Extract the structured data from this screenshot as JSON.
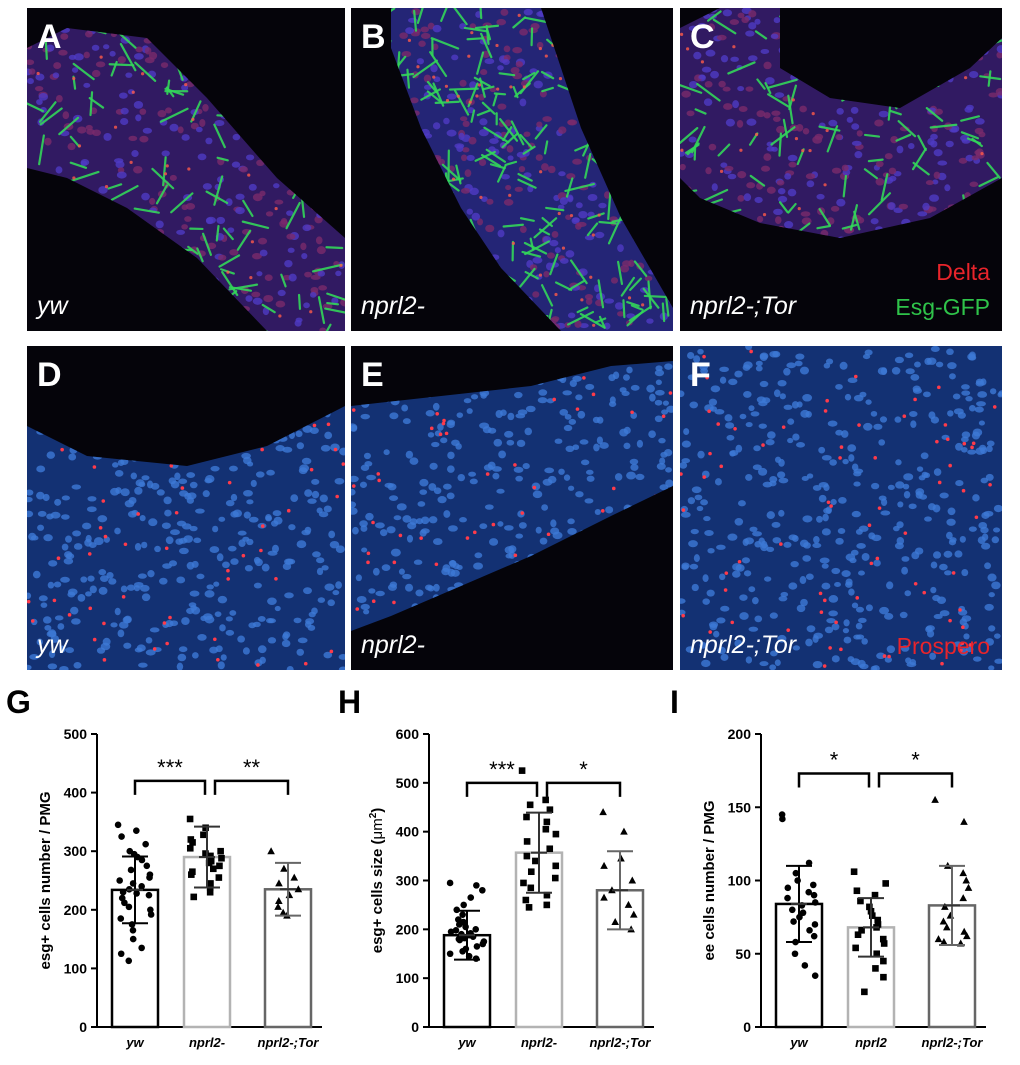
{
  "panels": [
    {
      "label": "A",
      "genotype": "yw",
      "style": "esg",
      "variant": 0
    },
    {
      "label": "B",
      "genotype": "nprl2-",
      "style": "esg",
      "variant": 1
    },
    {
      "label": "C",
      "genotype": "nprl2-;Tor",
      "style": "esg",
      "variant": 2,
      "stains": [
        "Delta",
        "Esg-GFP"
      ]
    },
    {
      "label": "D",
      "genotype": "yw",
      "style": "pros",
      "variant": 0
    },
    {
      "label": "E",
      "genotype": "nprl2-",
      "style": "pros",
      "variant": 1
    },
    {
      "label": "F",
      "genotype": "nprl2-;Tor",
      "style": "pros",
      "variant": 2,
      "stains": [
        "Prospero"
      ]
    }
  ],
  "stain_colors": {
    "Delta": "#e8242b",
    "Esg-GFP": "#2fc34a",
    "Prospero": "#e8242b"
  },
  "chart_data": [
    {
      "label": "G",
      "type": "bar",
      "ylabel": "esg+ cells number / PMG",
      "ylabel_super": "",
      "ylabel_after": "",
      "ylim": [
        0,
        500
      ],
      "yticks": [
        0,
        100,
        200,
        300,
        400,
        500
      ],
      "categories": [
        "yw",
        "nprl2-",
        "nprl2-;Tor"
      ],
      "means": [
        234,
        290,
        235
      ],
      "sd": [
        57,
        52,
        45
      ],
      "markers": [
        "circle",
        "square",
        "triangle"
      ],
      "bar_colors": [
        "#000000",
        "#b3b3b3",
        "#666666"
      ],
      "points": [
        [
          345,
          335,
          325,
          312,
          300,
          295,
          290,
          285,
          275,
          268,
          260,
          255,
          250,
          245,
          240,
          235,
          230,
          228,
          225,
          220,
          212,
          205,
          200,
          192,
          185,
          175,
          165,
          150,
          135,
          125,
          113
        ],
        [
          355,
          340,
          328,
          320,
          315,
          305,
          300,
          296,
          292,
          288,
          283,
          280,
          275,
          270,
          265,
          260,
          255,
          245,
          238,
          230,
          222
        ],
        [
          300,
          270,
          255,
          245,
          235,
          225,
          215,
          205,
          195,
          190
        ]
      ],
      "significance": [
        {
          "from": 0,
          "to": 1,
          "text": "***",
          "y": 420
        },
        {
          "from": 1,
          "to": 2,
          "text": "**",
          "y": 420
        }
      ]
    },
    {
      "label": "H",
      "type": "bar",
      "ylabel": "esg+ cells size (",
      "ylabel_super": "2",
      "ylabel_after": ")",
      "ylabel_unit": "μm",
      "ylim": [
        0,
        600
      ],
      "yticks": [
        0,
        100,
        200,
        300,
        400,
        500,
        600
      ],
      "categories": [
        "yw",
        "nprl2-",
        "nprl2-;Tor"
      ],
      "means": [
        188,
        357,
        280
      ],
      "sd": [
        50,
        82,
        80
      ],
      "markers": [
        "circle",
        "square",
        "triangle"
      ],
      "bar_colors": [
        "#000000",
        "#b3b3b3",
        "#666666"
      ],
      "points": [
        [
          295,
          290,
          280,
          265,
          250,
          240,
          230,
          220,
          215,
          210,
          205,
          200,
          198,
          195,
          192,
          190,
          188,
          185,
          182,
          180,
          178,
          175,
          170,
          165,
          160,
          155,
          150,
          145,
          140
        ],
        [
          525,
          465,
          455,
          445,
          430,
          420,
          405,
          395,
          380,
          365,
          350,
          340,
          330,
          318,
          305,
          295,
          285,
          270,
          260,
          250,
          245
        ],
        [
          440,
          400,
          345,
          330,
          300,
          280,
          265,
          250,
          230,
          215,
          200
        ]
      ],
      "significance": [
        {
          "from": 0,
          "to": 1,
          "text": "***",
          "y": 500
        },
        {
          "from": 1,
          "to": 2,
          "text": "*",
          "y": 500
        }
      ]
    },
    {
      "label": "I",
      "type": "bar",
      "ylabel": "ee cells number / PMG",
      "ylabel_super": "",
      "ylabel_after": "",
      "ylim": [
        0,
        200
      ],
      "yticks": [
        0,
        50,
        100,
        150,
        200
      ],
      "categories": [
        "yw",
        "nprl2",
        "nprl2-;Tor"
      ],
      "means": [
        84,
        68,
        83
      ],
      "sd": [
        26,
        20,
        27
      ],
      "markers": [
        "circle",
        "square",
        "triangle"
      ],
      "bar_colors": [
        "#000000",
        "#b3b3b3",
        "#666666"
      ],
      "points": [
        [
          145,
          142,
          112,
          105,
          100,
          97,
          95,
          92,
          90,
          88,
          85,
          83,
          80,
          78,
          75,
          72,
          70,
          66,
          62,
          58,
          50,
          42,
          35
        ],
        [
          106,
          98,
          93,
          90,
          86,
          82,
          79,
          76,
          73,
          70,
          68,
          66,
          63,
          60,
          57,
          54,
          50,
          45,
          40,
          34,
          24
        ],
        [
          155,
          140,
          110,
          105,
          100,
          95,
          88,
          82,
          76,
          72,
          68,
          65,
          62,
          60,
          58,
          57
        ]
      ],
      "significance": [
        {
          "from": 0,
          "to": 1,
          "text": "*",
          "y": 173
        },
        {
          "from": 1,
          "to": 2,
          "text": "*",
          "y": 173
        }
      ]
    }
  ]
}
